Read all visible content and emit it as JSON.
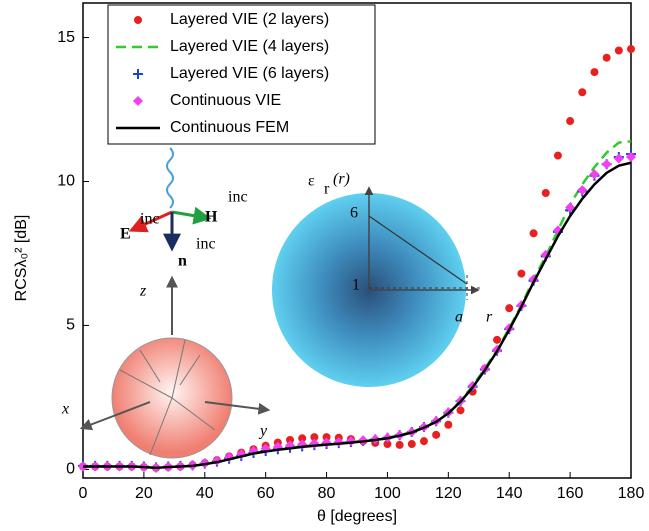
{
  "chart_data": {
    "type": "line",
    "xlabel": "θ [degrees]",
    "ylabel": "RCSλ₀² [dB]",
    "x": [
      0,
      4,
      8,
      12,
      16,
      20,
      24,
      28,
      32,
      36,
      40,
      44,
      48,
      52,
      56,
      60,
      64,
      68,
      72,
      76,
      80,
      84,
      88,
      92,
      96,
      100,
      104,
      108,
      112,
      116,
      120,
      124,
      128,
      132,
      136,
      140,
      144,
      148,
      152,
      156,
      160,
      164,
      168,
      172,
      176,
      180
    ],
    "xlim": [
      0,
      180
    ],
    "xticks": [
      0,
      20,
      40,
      60,
      80,
      100,
      120,
      140,
      160,
      180
    ],
    "ylim": [
      -0.3,
      16.2
    ],
    "yticks": [
      0,
      5,
      10,
      15
    ],
    "series": [
      {
        "name": "Layered VIE (2 layers)",
        "color": "#e8201f",
        "marker": "dot",
        "values": [
          0.1,
          0.1,
          0.1,
          0.1,
          0.1,
          0.08,
          0.05,
          0.08,
          0.1,
          0.15,
          0.22,
          0.32,
          0.45,
          0.58,
          0.7,
          0.82,
          0.93,
          1.02,
          1.08,
          1.12,
          1.12,
          1.1,
          1.05,
          0.98,
          0.92,
          0.88,
          0.85,
          0.88,
          0.98,
          1.2,
          1.55,
          2.05,
          2.7,
          3.5,
          4.5,
          5.6,
          6.8,
          8.2,
          9.6,
          10.9,
          12.1,
          13.1,
          13.8,
          14.3,
          14.55,
          14.6
        ]
      },
      {
        "name": "Layered VIE (4 layers)",
        "color": "#2ecc2e",
        "marker": "dashed",
        "values": [
          0.1,
          0.1,
          0.1,
          0.1,
          0.1,
          0.08,
          0.05,
          0.08,
          0.1,
          0.12,
          0.18,
          0.26,
          0.36,
          0.46,
          0.56,
          0.64,
          0.7,
          0.75,
          0.8,
          0.84,
          0.88,
          0.91,
          0.95,
          0.99,
          1.04,
          1.1,
          1.19,
          1.3,
          1.47,
          1.68,
          1.98,
          2.38,
          2.9,
          3.5,
          4.15,
          4.9,
          5.7,
          6.6,
          7.4,
          8.3,
          9.2,
          9.9,
          10.5,
          11.0,
          11.35,
          11.4
        ]
      },
      {
        "name": "Layered VIE (6 layers)",
        "color": "#1a3fe0",
        "marker": "plus",
        "values": [
          0.12,
          0.12,
          0.12,
          0.12,
          0.12,
          0.1,
          0.07,
          0.1,
          0.12,
          0.14,
          0.2,
          0.27,
          0.37,
          0.47,
          0.57,
          0.64,
          0.7,
          0.75,
          0.8,
          0.84,
          0.88,
          0.91,
          0.95,
          0.99,
          1.04,
          1.1,
          1.19,
          1.3,
          1.47,
          1.67,
          1.97,
          2.37,
          2.87,
          3.47,
          4.12,
          4.87,
          5.68,
          6.55,
          7.4,
          8.25,
          9.0,
          9.65,
          10.2,
          10.6,
          10.85,
          10.95
        ]
      },
      {
        "name": "Continuous VIE",
        "color": "#f040f0",
        "marker": "diamond",
        "values": [
          0.1,
          0.1,
          0.1,
          0.1,
          0.1,
          0.08,
          0.06,
          0.08,
          0.1,
          0.14,
          0.21,
          0.3,
          0.42,
          0.53,
          0.64,
          0.72,
          0.78,
          0.83,
          0.87,
          0.9,
          0.93,
          0.95,
          0.98,
          1.01,
          1.05,
          1.1,
          1.19,
          1.3,
          1.47,
          1.68,
          1.98,
          2.38,
          2.9,
          3.5,
          4.15,
          4.9,
          5.7,
          6.6,
          7.45,
          8.3,
          9.1,
          9.7,
          10.25,
          10.6,
          10.8,
          10.85
        ]
      },
      {
        "name": "Continuous FEM",
        "color": "#000000",
        "marker": "solid",
        "values": [
          0.1,
          0.1,
          0.1,
          0.1,
          0.1,
          0.08,
          0.05,
          0.08,
          0.1,
          0.12,
          0.18,
          0.25,
          0.35,
          0.45,
          0.55,
          0.62,
          0.68,
          0.73,
          0.78,
          0.82,
          0.86,
          0.89,
          0.93,
          0.97,
          1.02,
          1.08,
          1.17,
          1.28,
          1.45,
          1.65,
          1.95,
          2.35,
          2.85,
          3.45,
          4.1,
          4.85,
          5.65,
          6.5,
          7.3,
          8.1,
          8.8,
          9.4,
          9.9,
          10.3,
          10.55,
          10.65
        ]
      }
    ],
    "legend": "upper-left",
    "annotations": {
      "e_inc": "E",
      "e_sup": "inc",
      "h_inc": "H",
      "h_sup": "inc",
      "n_inc": "n",
      "n_sup": "inc",
      "z": "z",
      "x": "x",
      "y": "y",
      "eps": "ε",
      "eps_sub": "r",
      "eps_arg": "(r)",
      "six": "6",
      "one": "1",
      "a": "a",
      "r": "r"
    }
  }
}
